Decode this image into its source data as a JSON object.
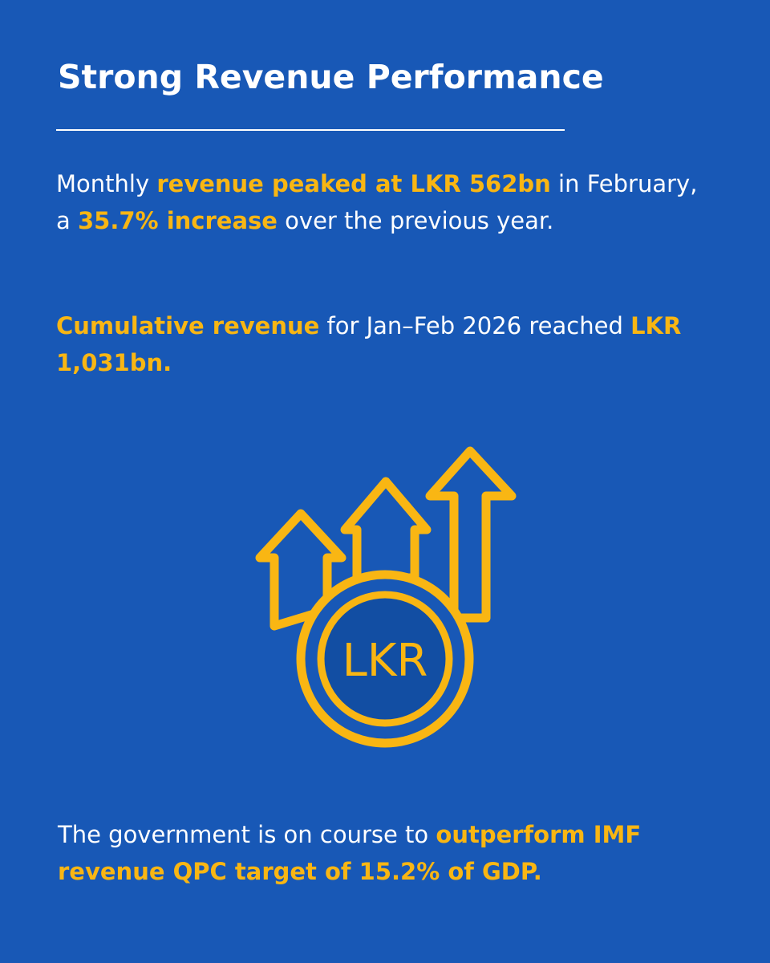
{
  "title": "Strong Revenue Performance",
  "paragraph1": {
    "t1": "Monthly ",
    "h1": "revenue peaked at LKR 562bn",
    "t2": " in February, a ",
    "h2": "35.7% increase",
    "t3": " over the previous year."
  },
  "paragraph2": {
    "h1": "Cumulative revenue",
    "t1": " for Jan–Feb 2026 reached ",
    "h2": "LKR 1,031bn."
  },
  "paragraph3": {
    "t1": "The government is on course to ",
    "h1": "outperform IMF revenue QPC target of 15.2% of GDP."
  },
  "icon": {
    "name": "growth-arrows-coin-icon",
    "coin_label": "LKR"
  },
  "colors": {
    "background": "#1858b6",
    "highlight": "#f9b613",
    "text": "#ffffff",
    "coin_fill": "#124ea3"
  }
}
